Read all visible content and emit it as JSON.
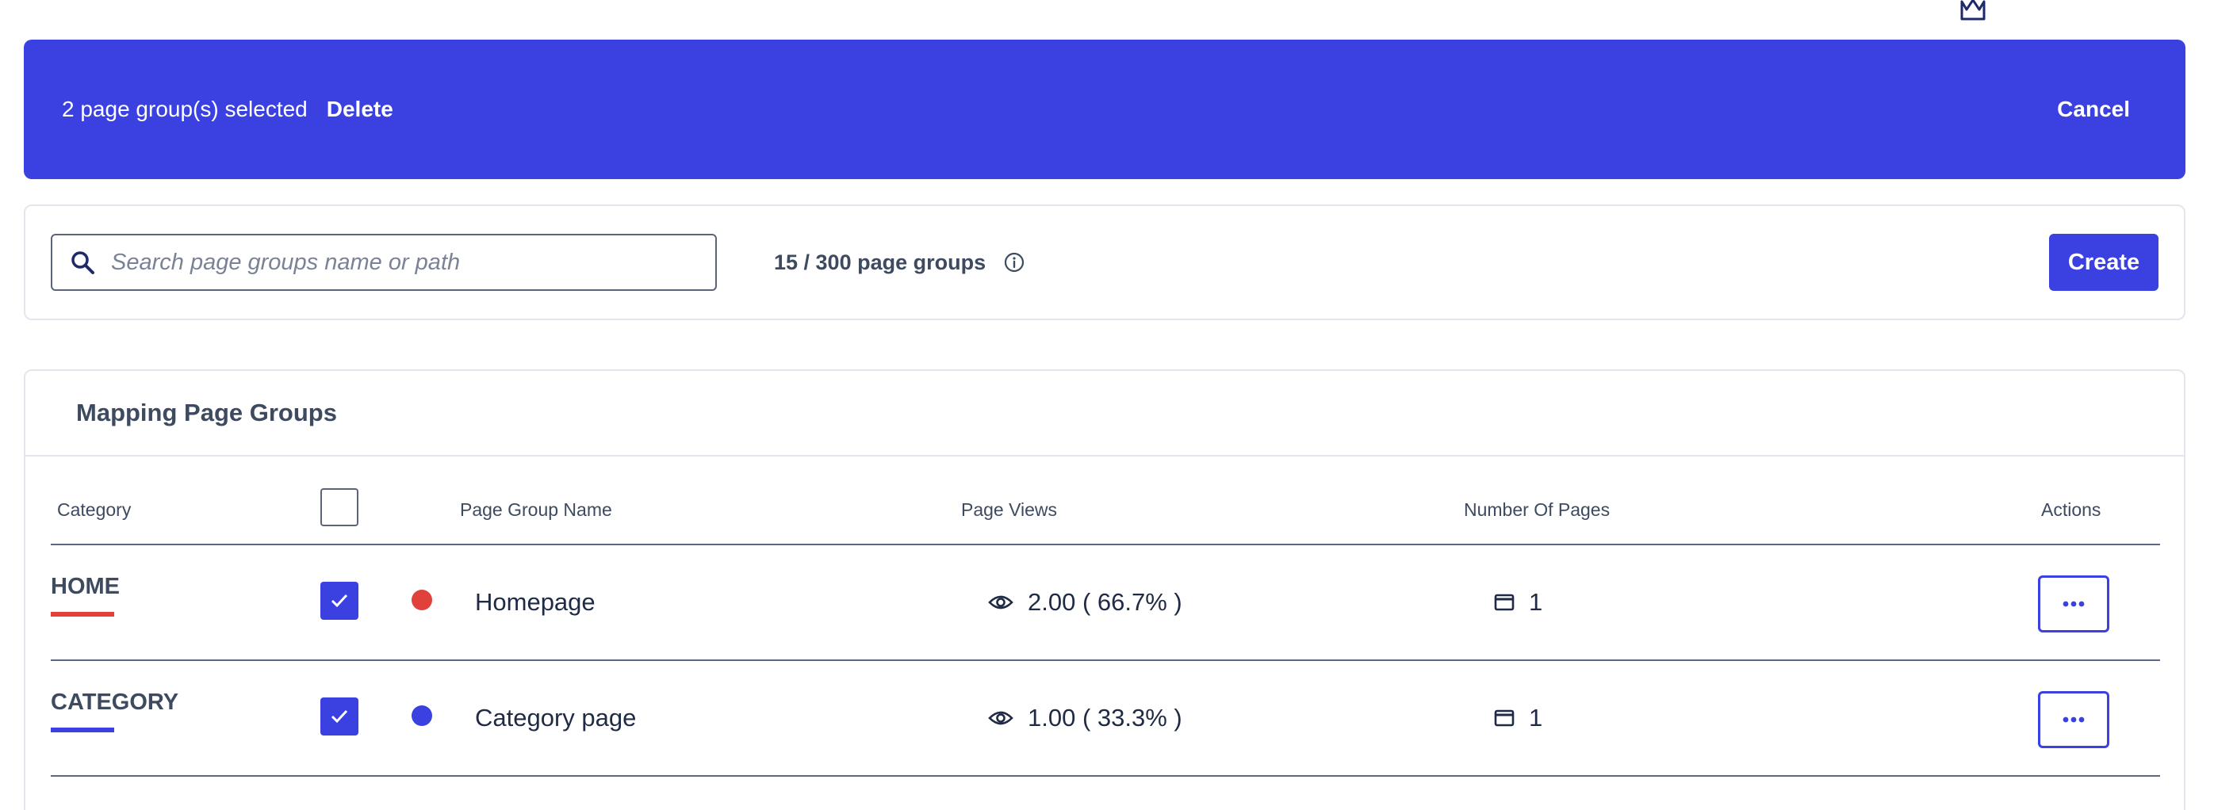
{
  "colors": {
    "accent": "#3a41e0",
    "home_category": "#e0413a",
    "category_category": "#3a41e0"
  },
  "top_icon": "crown-icon",
  "selection_bar": {
    "selected_text": "2 page group(s) selected",
    "delete_label": "Delete",
    "cancel_label": "Cancel"
  },
  "toolbar": {
    "search_placeholder": "Search page groups name or path",
    "search_icon": "search-icon",
    "quota_text": "15 / 300 page groups",
    "info_icon": "info-icon",
    "create_label": "Create"
  },
  "table": {
    "title": "Mapping Page Groups",
    "columns": {
      "category": "Category",
      "name": "Page Group Name",
      "views": "Page Views",
      "pages": "Number Of Pages",
      "actions": "Actions"
    },
    "rows": [
      {
        "category": "HOME",
        "checked": true,
        "name": "Homepage",
        "views": "2.00 ( 66.7% )",
        "pages": "1",
        "color": "#e0413a"
      },
      {
        "category": "CATEGORY",
        "checked": true,
        "name": "Category page",
        "views": "1.00 ( 33.3% )",
        "pages": "1",
        "color": "#3a41e0"
      }
    ]
  }
}
